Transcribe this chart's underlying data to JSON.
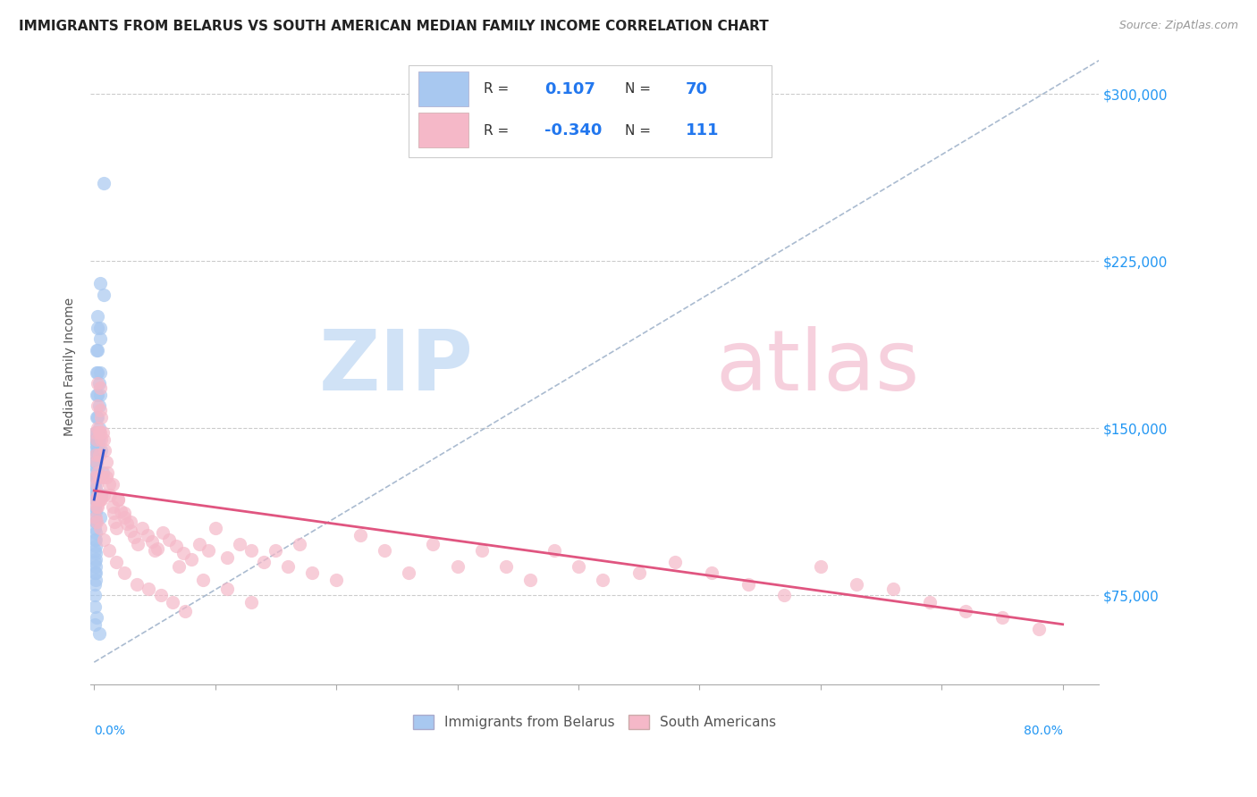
{
  "title": "IMMIGRANTS FROM BELARUS VS SOUTH AMERICAN MEDIAN FAMILY INCOME CORRELATION CHART",
  "source": "Source: ZipAtlas.com",
  "ylabel": "Median Family Income",
  "ytick_labels": [
    "$75,000",
    "$150,000",
    "$225,000",
    "$300,000"
  ],
  "ytick_values": [
    75000,
    150000,
    225000,
    300000
  ],
  "ymin": 35000,
  "ymax": 320000,
  "xmin": -0.003,
  "xmax": 0.83,
  "blue_color": "#a8c8f0",
  "pink_color": "#f5b8c8",
  "blue_line_color": "#3355cc",
  "pink_line_color": "#e05580",
  "dashed_line_color": "#aabbd0",
  "blue_scatter_x": [
    0.008,
    0.008,
    0.005,
    0.005,
    0.005,
    0.005,
    0.005,
    0.004,
    0.004,
    0.004,
    0.004,
    0.004,
    0.003,
    0.003,
    0.003,
    0.003,
    0.003,
    0.003,
    0.003,
    0.003,
    0.003,
    0.002,
    0.002,
    0.002,
    0.002,
    0.002,
    0.002,
    0.002,
    0.002,
    0.001,
    0.001,
    0.001,
    0.001,
    0.001,
    0.001,
    0.001,
    0.001,
    0.001,
    0.001,
    0.001,
    0.001,
    0.001,
    0.001,
    0.001,
    0.001,
    0.001,
    0.0005,
    0.0005,
    0.0005,
    0.0005,
    0.0005,
    0.0005,
    0.0005,
    0.0005,
    0.0005,
    0.0005,
    0.0005,
    0.0005,
    0.0005,
    0.0005,
    0.0005,
    0.0005,
    0.0005,
    0.003,
    0.006,
    0.007,
    0.006,
    0.005,
    0.002,
    0.004
  ],
  "blue_scatter_y": [
    260000,
    210000,
    215000,
    195000,
    190000,
    175000,
    165000,
    170000,
    160000,
    150000,
    145000,
    140000,
    200000,
    195000,
    185000,
    175000,
    165000,
    155000,
    148000,
    145000,
    140000,
    185000,
    175000,
    165000,
    155000,
    145000,
    135000,
    128000,
    120000,
    148000,
    143000,
    138000,
    133000,
    128000,
    123000,
    118000,
    113000,
    108000,
    103000,
    100000,
    97000,
    94000,
    91000,
    88000,
    85000,
    82000,
    145000,
    140000,
    135000,
    130000,
    125000,
    120000,
    115000,
    110000,
    105000,
    100000,
    95000,
    90000,
    85000,
    80000,
    75000,
    70000,
    62000,
    130000,
    140000,
    130000,
    120000,
    110000,
    65000,
    58000
  ],
  "pink_scatter_x": [
    0.001,
    0.001,
    0.001,
    0.001,
    0.001,
    0.002,
    0.002,
    0.002,
    0.002,
    0.002,
    0.003,
    0.003,
    0.003,
    0.003,
    0.003,
    0.004,
    0.004,
    0.004,
    0.004,
    0.005,
    0.005,
    0.005,
    0.005,
    0.006,
    0.006,
    0.006,
    0.007,
    0.007,
    0.008,
    0.008,
    0.009,
    0.01,
    0.011,
    0.012,
    0.013,
    0.015,
    0.016,
    0.017,
    0.018,
    0.02,
    0.022,
    0.025,
    0.027,
    0.03,
    0.033,
    0.036,
    0.04,
    0.044,
    0.048,
    0.052,
    0.057,
    0.062,
    0.068,
    0.074,
    0.08,
    0.087,
    0.094,
    0.1,
    0.11,
    0.12,
    0.13,
    0.14,
    0.15,
    0.16,
    0.17,
    0.18,
    0.2,
    0.22,
    0.24,
    0.26,
    0.28,
    0.3,
    0.32,
    0.34,
    0.36,
    0.38,
    0.4,
    0.42,
    0.45,
    0.48,
    0.51,
    0.54,
    0.57,
    0.6,
    0.63,
    0.66,
    0.69,
    0.72,
    0.75,
    0.78,
    0.01,
    0.015,
    0.02,
    0.025,
    0.03,
    0.05,
    0.07,
    0.09,
    0.11,
    0.13,
    0.003,
    0.005,
    0.008,
    0.012,
    0.018,
    0.025,
    0.035,
    0.045,
    0.055,
    0.065,
    0.075
  ],
  "pink_scatter_y": [
    148000,
    138000,
    128000,
    118000,
    110000,
    145000,
    135000,
    125000,
    115000,
    108000,
    170000,
    160000,
    150000,
    130000,
    120000,
    148000,
    138000,
    128000,
    118000,
    168000,
    158000,
    148000,
    118000,
    155000,
    145000,
    118000,
    148000,
    128000,
    145000,
    120000,
    140000,
    135000,
    130000,
    125000,
    120000,
    115000,
    112000,
    108000,
    105000,
    118000,
    113000,
    110000,
    107000,
    104000,
    101000,
    98000,
    105000,
    102000,
    99000,
    96000,
    103000,
    100000,
    97000,
    94000,
    91000,
    98000,
    95000,
    105000,
    92000,
    98000,
    95000,
    90000,
    95000,
    88000,
    98000,
    85000,
    82000,
    102000,
    95000,
    85000,
    98000,
    88000,
    95000,
    88000,
    82000,
    95000,
    88000,
    82000,
    85000,
    90000,
    85000,
    80000,
    75000,
    88000,
    80000,
    78000,
    72000,
    68000,
    65000,
    60000,
    128000,
    125000,
    118000,
    112000,
    108000,
    95000,
    88000,
    82000,
    78000,
    72000,
    115000,
    105000,
    100000,
    95000,
    90000,
    85000,
    80000,
    78000,
    75000,
    72000,
    68000
  ],
  "blue_trendline_x": [
    0.0,
    0.008
  ],
  "blue_trendline_y": [
    118000,
    140000
  ],
  "pink_trendline_x": [
    0.0,
    0.8
  ],
  "pink_trendline_y": [
    122000,
    62000
  ],
  "dashed_line_x": [
    0.0,
    0.83
  ],
  "dashed_line_y": [
    45000,
    315000
  ]
}
